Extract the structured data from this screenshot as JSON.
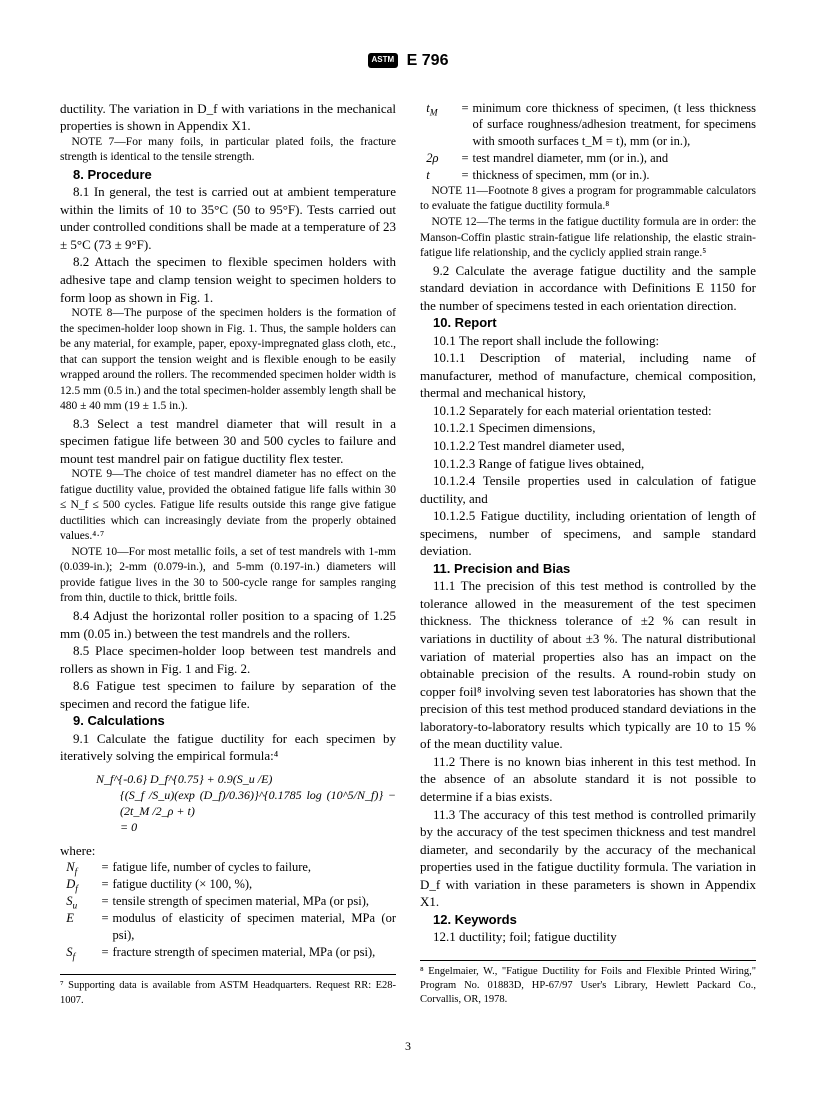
{
  "header": {
    "logo_text": "ASTM",
    "doc_id": "E 796"
  },
  "col1": {
    "intro": "ductility. The variation in D_f with variations in the mechanical properties is shown in Appendix X1.",
    "note7": "NOTE 7—For many foils, in particular plated foils, the fracture strength is identical to the tensile strength.",
    "s8": {
      "head": "8.  Procedure",
      "p1": "8.1  In general, the test is carried out at ambient temperature within the limits of 10 to 35°C (50 to 95°F). Tests carried out under controlled conditions shall be made at a temperature of 23 ± 5°C (73 ± 9°F).",
      "p2": "8.2  Attach the specimen to flexible specimen holders with adhesive tape and clamp tension weight to specimen holders to form loop as shown in Fig. 1.",
      "note8": "NOTE 8—The purpose of the specimen holders is the formation of the specimen-holder loop shown in Fig. 1. Thus, the sample holders can be any material, for example, paper, epoxy-impregnated glass cloth, etc., that can support the tension weight and is flexible enough to be easily wrapped around the rollers. The recommended specimen holder width is 12.5 mm (0.5 in.) and the total specimen-holder assembly length shall be 480 ± 40 mm (19 ± 1.5 in.).",
      "p3": "8.3  Select a test mandrel diameter that will result in a specimen fatigue life between 30 and 500 cycles to failure and mount test mandrel pair on fatigue ductility flex tester.",
      "note9": "NOTE 9—The choice of test mandrel diameter has no effect on the fatigue ductility value, provided the obtained fatigue life falls within 30 ≤ N_f ≤ 500 cycles. Fatigue life results outside this range give fatigue ductilities which can increasingly deviate from the properly obtained values.⁴·⁷",
      "note10": "NOTE 10—For most metallic foils, a set of test mandrels with 1-mm (0.039-in.); 2-mm (0.079-in.), and 5-mm (0.197-in.) diameters will provide fatigue lives in the 30 to 500-cycle range for samples ranging from thin, ductile to thick, brittle foils.",
      "p4": "8.4  Adjust the horizontal roller position to a spacing of 1.25 mm (0.05 in.) between the test mandrels and the rollers.",
      "p5": "8.5  Place specimen-holder loop between test mandrels and rollers as shown in Fig. 1 and Fig. 2.",
      "p6": "8.6  Fatigue test specimen to failure by separation of the specimen and record the fatigue life."
    },
    "s9": {
      "head": "9.  Calculations",
      "p1": "9.1  Calculate the fatigue ductility for each specimen by iteratively solving the empirical formula:⁴",
      "formula_l1": "N_f^{-0.6} D_f^{0.75}  + 0.9(S_u /E)",
      "formula_l2": "{(S_f /S_u)(exp (D_f)/0.36)}^{0.1785 log (10^5/N_f)}  − (2t_M /2_ρ + t)",
      "formula_l3": "= 0",
      "where_label": "where:",
      "defs": {
        "Nf": "fatigue life, number of cycles to failure,",
        "Df": "fatigue ductility (× 100, %),",
        "Su": "tensile strength of specimen material, MPa (or psi),",
        "E": "modulus of elasticity of specimen material, MPa (or psi),",
        "Sf": "fracture strength of specimen material, MPa (or psi),"
      }
    },
    "fn7": "⁷ Supporting data is available from ASTM Headquarters. Request RR: E28-1007."
  },
  "col2": {
    "defs": {
      "tM": "minimum core thickness of specimen, (t less thickness of surface roughness/adhesion treatment, for specimens with smooth surfaces t_M  = t), mm (or in.),",
      "rho": "test mandrel diameter, mm (or in.), and",
      "t": "thickness of specimen, mm (or in.)."
    },
    "note11": "NOTE 11—Footnote 8 gives a program for programmable calculators to evaluate the fatigue ductility formula.⁸",
    "note12": "NOTE 12—The terms in the fatigue ductility formula are in order: the Manson-Coffin plastic strain-fatigue life relationship, the elastic strain-fatigue life relationship, and the cyclicly applied strain range.⁵",
    "p92": "9.2  Calculate the average fatigue ductility and the sample standard deviation in accordance with Definitions E 1150 for the number of specimens tested in each orientation direction.",
    "s10": {
      "head": "10.  Report",
      "p1": "10.1  The report shall include the following:",
      "p11": "10.1.1  Description of material, including name of manufacturer, method of manufacture, chemical composition, thermal and mechanical history,",
      "p12": "10.1.2  Separately for each material orientation tested:",
      "p121": "10.1.2.1  Specimen dimensions,",
      "p122": "10.1.2.2  Test mandrel diameter used,",
      "p123": "10.1.2.3  Range of fatigue lives obtained,",
      "p124": "10.1.2.4  Tensile properties used in calculation of fatigue ductility, and",
      "p125": "10.1.2.5  Fatigue ductility, including orientation of length of specimens, number of specimens, and sample standard deviation."
    },
    "s11": {
      "head": "11.  Precision and Bias",
      "p1": "11.1  The precision of this test method is controlled by the tolerance allowed in the measurement of the test specimen thickness. The thickness tolerance of ±2 % can result in variations in ductility of about ±3 %. The natural distributional variation of material properties also has an impact on the obtainable precision of the results. A round-robin study on copper foil⁸ involving seven test laboratories has shown that the precision of this test method produced standard deviations in the laboratory-to-laboratory results which typically are 10 to 15 % of the mean ductility value.",
      "p2": "11.2  There is no known bias inherent in this test method. In the absence of an absolute standard it is not possible to determine if a bias exists.",
      "p3": "11.3  The accuracy of this test method is controlled primarily by the accuracy of the test specimen thickness and test mandrel diameter, and secondarily by the accuracy of the mechanical properties used in the fatigue ductility formula. The variation in D_f with variation in these parameters is shown in Appendix X1."
    },
    "s12": {
      "head": "12.  Keywords",
      "p1": "12.1  ductility; foil; fatigue ductility"
    },
    "fn8": "⁸ Engelmaier, W., \"Fatigue Ductility for Foils and Flexible Printed Wiring,\" Program No. 01883D, HP-67/97 User's Library, Hewlett Packard Co., Corvallis, OR, 1978."
  },
  "page_number": "3"
}
